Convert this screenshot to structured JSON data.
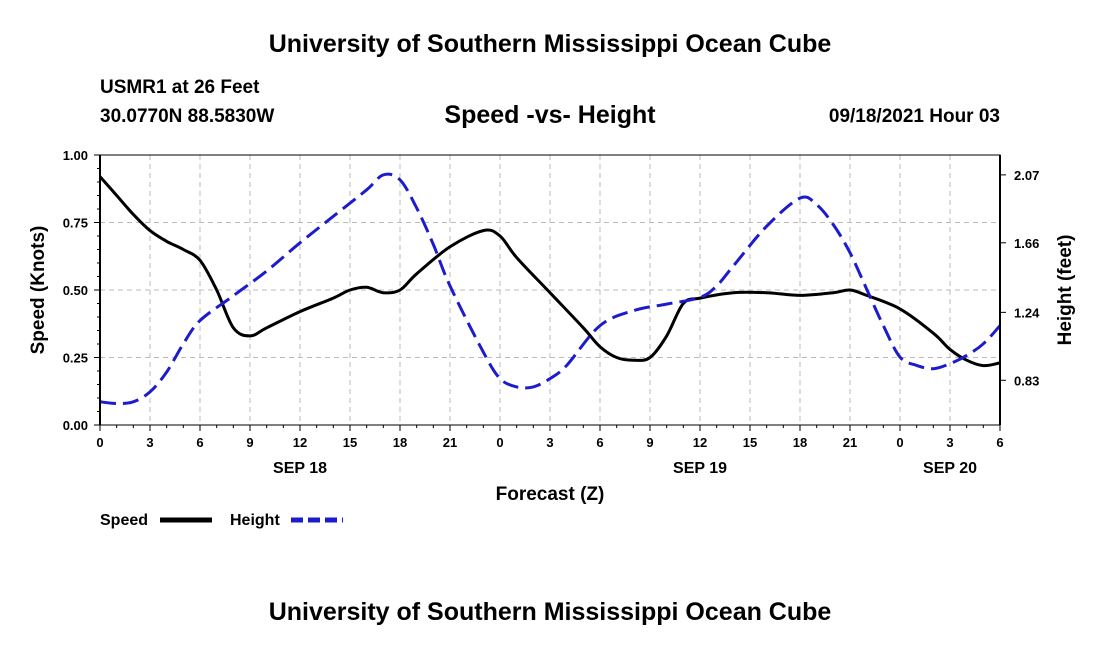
{
  "header": {
    "title": "University of Southern Mississippi Ocean Cube",
    "station": "USMR1 at 26 Feet",
    "coords": "30.0770N  88.5830W",
    "chart_title": "Speed -vs- Height",
    "valid_time": "09/18/2021 Hour 03"
  },
  "footer": {
    "title": "University of Southern Mississippi Ocean Cube"
  },
  "colors": {
    "speed": "#000000",
    "height": "#1c1ccc",
    "grid": "#bbbbbb"
  },
  "chart_data": {
    "type": "line",
    "title": "Speed -vs- Height",
    "xlabel": "Forecast (Z)",
    "ylabel": "Speed (Knots)",
    "ylabel_right": "Height (feet)",
    "x_range_hours": [
      0,
      54
    ],
    "ylim": [
      0,
      1
    ],
    "ylim_right": [
      0.56,
      2.19
    ],
    "x_ticks": [
      {
        "h": 0,
        "label": "0"
      },
      {
        "h": 3,
        "label": "3"
      },
      {
        "h": 6,
        "label": "6"
      },
      {
        "h": 9,
        "label": "9"
      },
      {
        "h": 12,
        "label": "12"
      },
      {
        "h": 15,
        "label": "15"
      },
      {
        "h": 18,
        "label": "18"
      },
      {
        "h": 21,
        "label": "21"
      },
      {
        "h": 24,
        "label": "0"
      },
      {
        "h": 27,
        "label": "3"
      },
      {
        "h": 30,
        "label": "6"
      },
      {
        "h": 33,
        "label": "9"
      },
      {
        "h": 36,
        "label": "12"
      },
      {
        "h": 39,
        "label": "15"
      },
      {
        "h": 42,
        "label": "18"
      },
      {
        "h": 45,
        "label": "21"
      },
      {
        "h": 48,
        "label": "0"
      },
      {
        "h": 51,
        "label": "3"
      },
      {
        "h": 54,
        "label": "6"
      }
    ],
    "date_labels": [
      {
        "h": 12,
        "label": "SEP 18"
      },
      {
        "h": 36,
        "label": "SEP 19"
      },
      {
        "h": 51,
        "label": "SEP 20"
      }
    ],
    "y_ticks": [
      {
        "v": 0.0,
        "label": "0.00"
      },
      {
        "v": 0.25,
        "label": "0.25"
      },
      {
        "v": 0.5,
        "label": "0.50"
      },
      {
        "v": 0.75,
        "label": "0.75"
      },
      {
        "v": 1.0,
        "label": "1.00"
      }
    ],
    "y_ticks_right": [
      {
        "v": 0.83,
        "label": "0.83"
      },
      {
        "v": 1.24,
        "label": "1.24"
      },
      {
        "v": 1.66,
        "label": "1.66"
      },
      {
        "v": 2.07,
        "label": "2.07"
      }
    ],
    "series": [
      {
        "name": "Speed",
        "axis": "left",
        "style": "solid",
        "hours": [
          0,
          1,
          2,
          3,
          4,
          5,
          6,
          7,
          8,
          9,
          10,
          12,
          14,
          15,
          16,
          17,
          18,
          19,
          21,
          23,
          24,
          25,
          27,
          29,
          30,
          31,
          32,
          33,
          34,
          35,
          36,
          38,
          40,
          42,
          44,
          45,
          46,
          48,
          50,
          51,
          52,
          53,
          54
        ],
        "values": [
          0.92,
          0.85,
          0.78,
          0.72,
          0.68,
          0.65,
          0.61,
          0.5,
          0.36,
          0.33,
          0.36,
          0.42,
          0.47,
          0.5,
          0.51,
          0.49,
          0.5,
          0.56,
          0.66,
          0.72,
          0.7,
          0.62,
          0.49,
          0.36,
          0.29,
          0.25,
          0.24,
          0.25,
          0.33,
          0.45,
          0.47,
          0.49,
          0.49,
          0.48,
          0.49,
          0.5,
          0.48,
          0.43,
          0.34,
          0.28,
          0.24,
          0.22,
          0.23
        ]
      },
      {
        "name": "Height",
        "axis": "right",
        "style": "dashed",
        "hours": [
          0,
          1,
          2,
          3,
          4,
          5,
          6,
          8,
          10,
          12,
          14,
          16,
          17,
          18,
          19,
          20,
          21,
          23,
          24,
          25,
          26,
          27,
          28,
          30,
          32,
          34,
          36,
          37,
          38,
          40,
          42,
          43,
          44,
          45,
          46,
          47,
          48,
          49,
          50,
          51,
          52,
          53,
          54
        ],
        "values": [
          0.7,
          0.69,
          0.7,
          0.76,
          0.88,
          1.05,
          1.19,
          1.34,
          1.49,
          1.66,
          1.82,
          1.98,
          2.07,
          2.04,
          1.87,
          1.65,
          1.4,
          1.0,
          0.84,
          0.79,
          0.79,
          0.84,
          0.92,
          1.16,
          1.25,
          1.29,
          1.33,
          1.4,
          1.52,
          1.76,
          1.93,
          1.89,
          1.77,
          1.6,
          1.38,
          1.16,
          0.97,
          0.92,
          0.9,
          0.93,
          0.98,
          1.05,
          1.16
        ]
      }
    ],
    "legend": [
      {
        "name": "Speed",
        "label": "Speed"
      },
      {
        "name": "Height",
        "label": "Height"
      }
    ]
  }
}
